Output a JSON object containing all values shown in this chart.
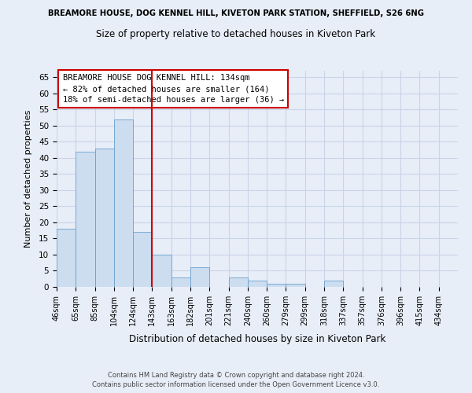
{
  "title": "BREAMORE HOUSE, DOG KENNEL HILL, KIVETON PARK STATION, SHEFFIELD, S26 6NG",
  "subtitle": "Size of property relative to detached houses in Kiveton Park",
  "xlabel": "Distribution of detached houses by size in Kiveton Park",
  "ylabel": "Number of detached properties",
  "bar_labels": [
    "46sqm",
    "65sqm",
    "85sqm",
    "104sqm",
    "124sqm",
    "143sqm",
    "163sqm",
    "182sqm",
    "201sqm",
    "221sqm",
    "240sqm",
    "260sqm",
    "279sqm",
    "299sqm",
    "318sqm",
    "337sqm",
    "357sqm",
    "376sqm",
    "396sqm",
    "415sqm",
    "434sqm"
  ],
  "bar_values": [
    18,
    42,
    43,
    52,
    17,
    10,
    3,
    6,
    0,
    3,
    2,
    1,
    1,
    0,
    2,
    0,
    0,
    0,
    0,
    0,
    0
  ],
  "bar_color": "#ccddf0",
  "bar_edge_color": "#6aa0cc",
  "red_line_index": 5,
  "red_line_color": "#cc0000",
  "annotation_title": "BREAMORE HOUSE DOG KENNEL HILL: 134sqm",
  "annotation_line1": "← 82% of detached houses are smaller (164)",
  "annotation_line2": "18% of semi-detached houses are larger (36) →",
  "annotation_box_facecolor": "#ffffff",
  "annotation_box_edgecolor": "#cc0000",
  "grid_color": "#c8d4e8",
  "background_color": "#e8eef8",
  "ylim": [
    0,
    67
  ],
  "yticks": [
    0,
    5,
    10,
    15,
    20,
    25,
    30,
    35,
    40,
    45,
    50,
    55,
    60,
    65
  ],
  "footer1": "Contains HM Land Registry data © Crown copyright and database right 2024.",
  "footer2": "Contains public sector information licensed under the Open Government Licence v3.0."
}
